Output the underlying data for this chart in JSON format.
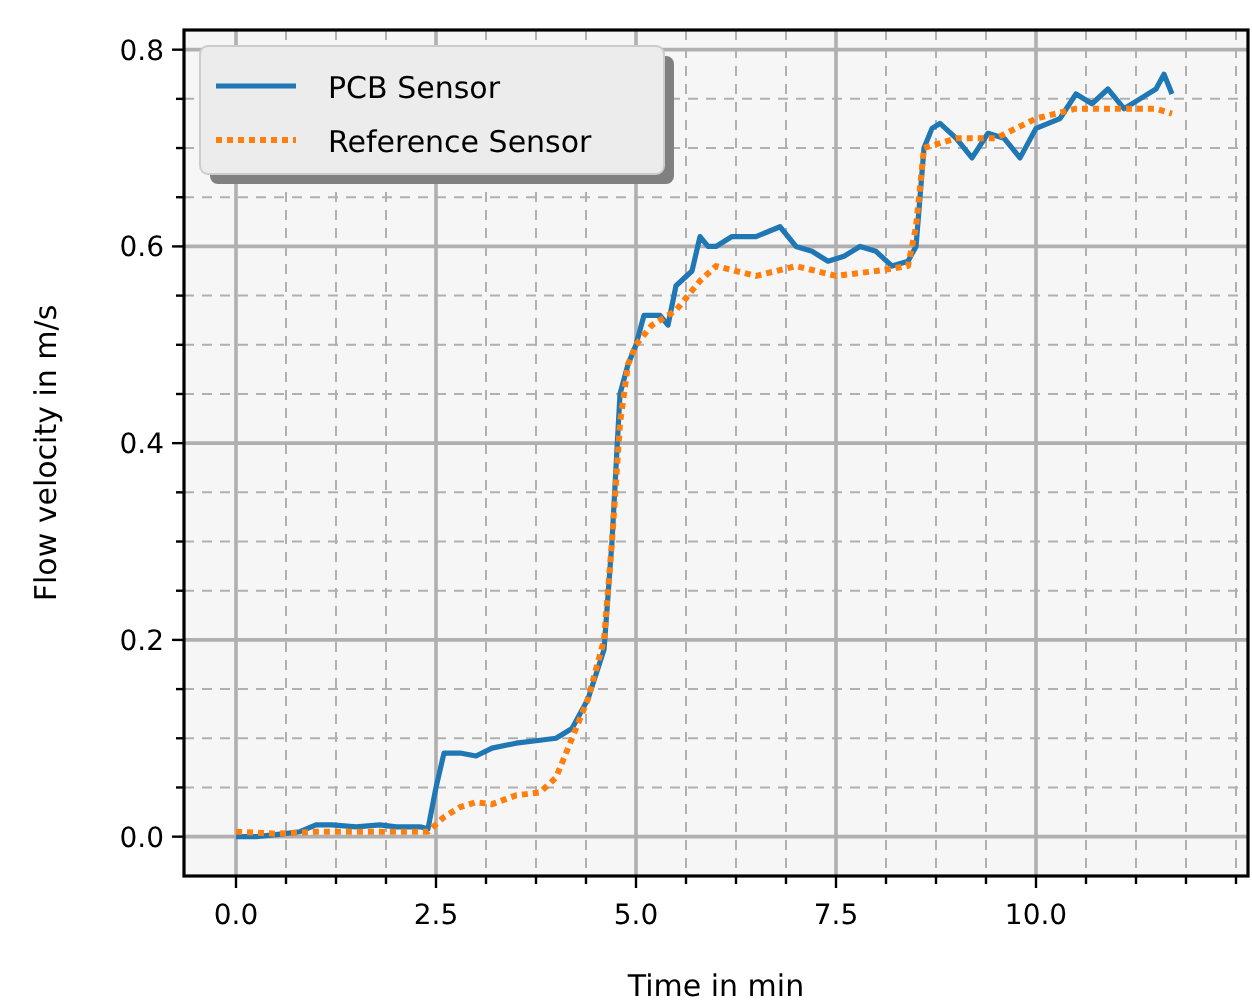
{
  "chart_data": {
    "type": "line",
    "xlabel": "Time in min",
    "ylabel": "Flow velocity in m/s",
    "xlim": [
      -0.65,
      12.65
    ],
    "ylim": [
      -0.04,
      0.82
    ],
    "xticks": [
      {
        "value": 0,
        "label": "0.0"
      },
      {
        "value": 0.625,
        "label": null
      },
      {
        "value": 1.25,
        "label": null
      },
      {
        "value": 1.875,
        "label": null
      },
      {
        "value": 2.5,
        "label": "2.5"
      },
      {
        "value": 3.125,
        "label": null
      },
      {
        "value": 3.75,
        "label": null
      },
      {
        "value": 4.375,
        "label": null
      },
      {
        "value": 5,
        "label": "5.0"
      },
      {
        "value": 5.625,
        "label": null
      },
      {
        "value": 6.25,
        "label": null
      },
      {
        "value": 6.875,
        "label": null
      },
      {
        "value": 7.5,
        "label": "7.5"
      },
      {
        "value": 8.125,
        "label": null
      },
      {
        "value": 8.75,
        "label": null
      },
      {
        "value": 9.375,
        "label": null
      },
      {
        "value": 10,
        "label": "10.0"
      },
      {
        "value": 10.625,
        "label": null
      },
      {
        "value": 11.25,
        "label": null
      },
      {
        "value": 11.875,
        "label": null
      },
      {
        "value": 12.5,
        "label": null
      }
    ],
    "yticks": [
      {
        "value": 0,
        "label": "0.0"
      },
      {
        "value": 0.05,
        "label": null
      },
      {
        "value": 0.1,
        "label": null
      },
      {
        "value": 0.15,
        "label": null
      },
      {
        "value": 0.2,
        "label": "0.2"
      },
      {
        "value": 0.25,
        "label": null
      },
      {
        "value": 0.3,
        "label": null
      },
      {
        "value": 0.35,
        "label": null
      },
      {
        "value": 0.4,
        "label": "0.4"
      },
      {
        "value": 0.45,
        "label": null
      },
      {
        "value": 0.5,
        "label": null
      },
      {
        "value": 0.55,
        "label": null
      },
      {
        "value": 0.6,
        "label": "0.6"
      },
      {
        "value": 0.65,
        "label": null
      },
      {
        "value": 0.7,
        "label": null
      },
      {
        "value": 0.75,
        "label": null
      },
      {
        "value": 0.8,
        "label": "0.8"
      }
    ],
    "grid": true,
    "legend": "top left",
    "marker": "none",
    "series": [
      {
        "name": "PCB Sensor",
        "color": "#1f77b4",
        "line_style": "solid",
        "x": [
          0,
          0.25,
          0.5,
          0.8,
          1.0,
          1.2,
          1.5,
          1.8,
          2.0,
          2.3,
          2.4,
          2.5,
          2.6,
          2.8,
          3.0,
          3.2,
          3.5,
          3.8,
          4.0,
          4.2,
          4.4,
          4.6,
          4.7,
          4.8,
          4.9,
          5.0,
          5.1,
          5.3,
          5.4,
          5.5,
          5.7,
          5.8,
          5.9,
          6.0,
          6.2,
          6.5,
          6.8,
          7.0,
          7.2,
          7.4,
          7.6,
          7.8,
          8.0,
          8.2,
          8.4,
          8.5,
          8.6,
          8.7,
          8.8,
          9.0,
          9.2,
          9.4,
          9.6,
          9.8,
          10.0,
          10.3,
          10.5,
          10.7,
          10.9,
          11.1,
          11.3,
          11.5,
          11.6,
          11.7
        ],
        "values": [
          0,
          0,
          0.002,
          0.005,
          0.012,
          0.012,
          0.01,
          0.012,
          0.01,
          0.01,
          0.008,
          0.05,
          0.085,
          0.085,
          0.082,
          0.09,
          0.095,
          0.098,
          0.1,
          0.11,
          0.14,
          0.19,
          0.3,
          0.45,
          0.48,
          0.5,
          0.53,
          0.53,
          0.52,
          0.56,
          0.575,
          0.61,
          0.6,
          0.6,
          0.61,
          0.61,
          0.62,
          0.6,
          0.595,
          0.585,
          0.59,
          0.6,
          0.595,
          0.58,
          0.585,
          0.6,
          0.7,
          0.72,
          0.725,
          0.71,
          0.69,
          0.715,
          0.71,
          0.69,
          0.72,
          0.73,
          0.755,
          0.745,
          0.76,
          0.74,
          0.75,
          0.76,
          0.775,
          0.755
        ]
      },
      {
        "name": "Reference Sensor",
        "color": "#ff7f0e",
        "line_style": "dotted",
        "x": [
          0,
          0.5,
          1.0,
          2.0,
          2.4,
          2.6,
          2.8,
          3.0,
          3.2,
          3.5,
          3.8,
          4.0,
          4.2,
          4.4,
          4.6,
          4.7,
          4.8,
          4.9,
          5.0,
          5.2,
          5.5,
          5.8,
          6.0,
          6.5,
          7.0,
          7.5,
          8.0,
          8.4,
          8.5,
          8.6,
          8.8,
          9.0,
          9.5,
          10.0,
          10.5,
          11.0,
          11.5,
          11.7
        ],
        "values": [
          0.005,
          0.003,
          0.005,
          0.005,
          0.005,
          0.02,
          0.03,
          0.035,
          0.033,
          0.042,
          0.045,
          0.06,
          0.1,
          0.14,
          0.2,
          0.3,
          0.42,
          0.48,
          0.5,
          0.52,
          0.535,
          0.565,
          0.58,
          0.57,
          0.58,
          0.57,
          0.575,
          0.58,
          0.62,
          0.7,
          0.705,
          0.71,
          0.71,
          0.73,
          0.74,
          0.74,
          0.74,
          0.735
        ]
      }
    ]
  }
}
